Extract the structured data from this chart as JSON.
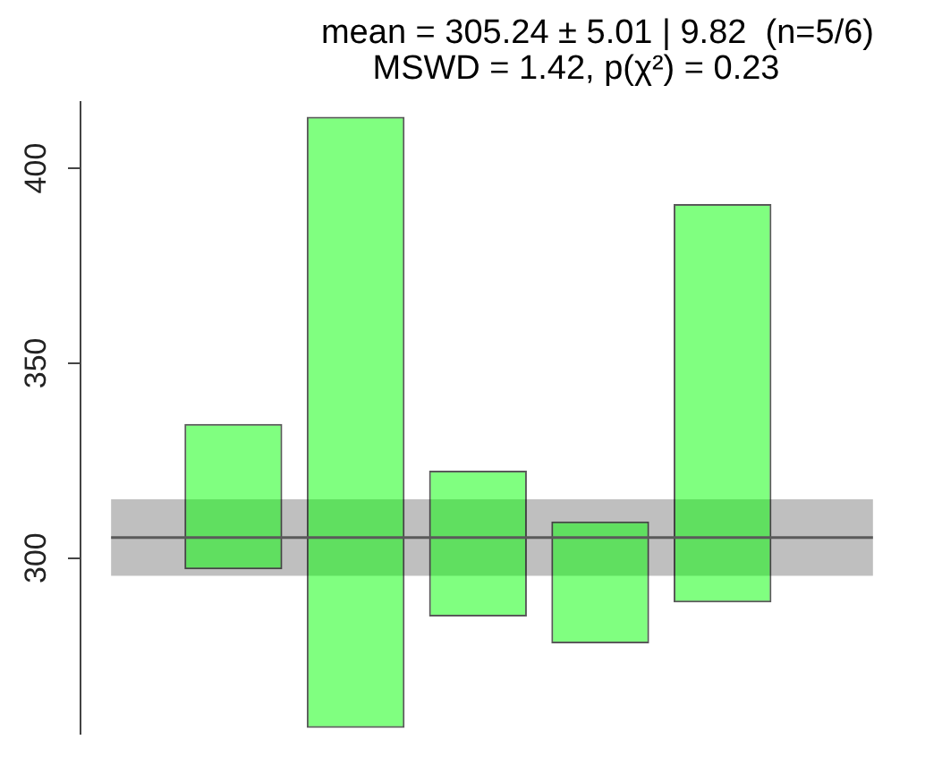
{
  "chart_data": {
    "type": "bar",
    "title": "mean = 305.24 ± 5.01 | 9.82  (n=5/6)",
    "subtitle": "MSWD = 1.42, p(χ²) = 0.23",
    "categories": [
      null,
      null,
      null,
      null,
      null
    ],
    "values": [
      37.3,
      156.8,
      37.4,
      31.3,
      102.2
    ],
    "base": [
      297.1,
      256.4,
      285,
      278.1,
      288.6
    ],
    "color": "#80ff80",
    "ylim": [
      255,
      417
    ],
    "yticks": [
      300,
      350,
      400
    ],
    "tick_labels": "y",
    "bands": [
      {
        "axis": "y",
        "from": 295.42,
        "to": 315.06,
        "color": "#bfbfbf"
      }
    ],
    "ref_lines": [
      {
        "axis": "y",
        "value": 305.24,
        "color": "#5a5a5a"
      }
    ]
  }
}
